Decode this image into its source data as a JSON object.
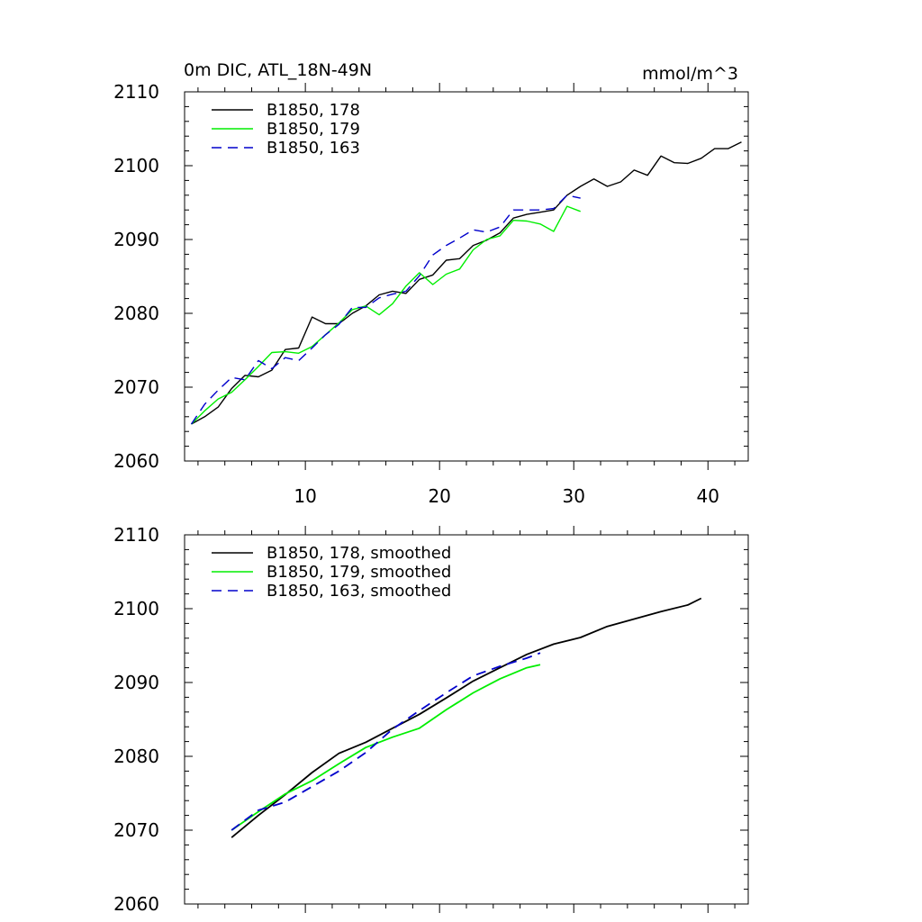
{
  "chart_data": [
    {
      "type": "line",
      "title": "0m DIC, ATL_18N-49N",
      "units": "mmol/m^3",
      "xlim": [
        1,
        43
      ],
      "ylim": [
        2060,
        2110
      ],
      "x_ticks": [
        10,
        20,
        30,
        40
      ],
      "x_tick_labels": [
        "10",
        "20",
        "30",
        "40"
      ],
      "y_ticks": [
        2060,
        2070,
        2080,
        2090,
        2100,
        2110
      ],
      "y_tick_labels": [
        "2060",
        "2070",
        "2080",
        "2090",
        "2100",
        "2110"
      ],
      "grid": false,
      "legend_position": "top-left",
      "series": [
        {
          "name": "B1850, 178",
          "color": "#000000",
          "dash": "solid",
          "x": [
            1.5,
            2.5,
            3.5,
            4.5,
            5.5,
            6.5,
            7.5,
            8.5,
            9.5,
            10.5,
            11.5,
            12.5,
            13.5,
            14.5,
            15.5,
            16.5,
            17.5,
            18.5,
            19.5,
            20.5,
            21.5,
            22.5,
            23.5,
            24.5,
            25.5,
            26.5,
            27.5,
            28.5,
            29.5,
            30.5,
            31.5,
            32.5,
            33.5,
            34.5,
            35.5,
            36.5,
            37.5,
            38.5,
            39.5,
            40.5,
            41.5,
            42.5
          ],
          "y": [
            2065.0,
            2066.0,
            2067.3,
            2069.8,
            2071.6,
            2071.4,
            2072.3,
            2075.1,
            2075.3,
            2079.5,
            2078.6,
            2078.6,
            2080.0,
            2081.0,
            2082.5,
            2083.0,
            2082.7,
            2084.6,
            2085.2,
            2087.2,
            2087.4,
            2089.2,
            2089.9,
            2090.9,
            2092.9,
            2093.4,
            2093.7,
            2094.0,
            2096.0,
            2097.2,
            2098.2,
            2097.2,
            2097.8,
            2099.4,
            2098.7,
            2101.3,
            2100.4,
            2100.3,
            2101.0,
            2102.3,
            2102.3,
            2103.2
          ]
        },
        {
          "name": "B1850, 179",
          "color": "#00ee00",
          "dash": "solid",
          "x": [
            1.5,
            2.5,
            3.5,
            4.5,
            5.5,
            6.5,
            7.5,
            8.5,
            9.5,
            10.5,
            11.5,
            12.5,
            13.5,
            14.5,
            15.5,
            16.5,
            17.5,
            18.5,
            19.5,
            20.5,
            21.5,
            22.5,
            23.5,
            24.5,
            25.5,
            26.5,
            27.5,
            28.5,
            29.5,
            30.5
          ],
          "y": [
            2065.0,
            2066.8,
            2068.4,
            2069.3,
            2071.0,
            2072.8,
            2074.7,
            2074.8,
            2074.6,
            2075.5,
            2077.1,
            2078.7,
            2080.5,
            2081.0,
            2079.8,
            2081.3,
            2083.7,
            2085.5,
            2083.9,
            2085.3,
            2086.0,
            2088.6,
            2090.0,
            2090.5,
            2092.6,
            2092.5,
            2092.1,
            2091.1,
            2094.5,
            2093.8
          ]
        },
        {
          "name": "B1850, 163",
          "color": "#0000cc",
          "dash": "dashed",
          "x": [
            1.5,
            2.5,
            3.5,
            4.5,
            5.5,
            6.5,
            7.5,
            8.5,
            9.5,
            10.5,
            11.5,
            12.5,
            13.5,
            14.5,
            15.5,
            16.5,
            17.5,
            18.5,
            19.5,
            20.5,
            21.5,
            22.5,
            23.5,
            24.5,
            25.5,
            26.5,
            27.5,
            28.5,
            29.5,
            30.5
          ],
          "y": [
            2065.0,
            2067.7,
            2069.6,
            2071.3,
            2071.0,
            2073.6,
            2072.5,
            2074.0,
            2073.6,
            2075.3,
            2077.1,
            2078.5,
            2080.8,
            2080.8,
            2082.1,
            2082.6,
            2083.0,
            2085.1,
            2087.9,
            2089.2,
            2090.2,
            2091.3,
            2091.0,
            2091.7,
            2094.0,
            2094.0,
            2094.0,
            2094.2,
            2096.0,
            2095.6
          ]
        }
      ]
    },
    {
      "type": "line",
      "xlim": [
        1,
        43
      ],
      "ylim": [
        2060,
        2110
      ],
      "x_ticks": [
        10,
        20,
        30,
        40
      ],
      "y_ticks": [
        2060,
        2070,
        2080,
        2090,
        2100,
        2110
      ],
      "y_tick_labels": [
        "2060",
        "2070",
        "2080",
        "2090",
        "2100",
        "2110"
      ],
      "grid": false,
      "legend_position": "top-left",
      "series": [
        {
          "name": "B1850, 178, smoothed",
          "color": "#000000",
          "dash": "solid",
          "x": [
            4.5,
            6.5,
            8.5,
            10.5,
            12.5,
            14.5,
            16.5,
            18.5,
            20.5,
            22.5,
            24.5,
            26.5,
            28.5,
            30.5,
            32.5,
            34.5,
            36.5,
            38.5,
            39.5
          ],
          "y": [
            2069.0,
            2072.0,
            2074.8,
            2077.8,
            2080.4,
            2081.9,
            2083.8,
            2085.7,
            2087.9,
            2090.2,
            2092.0,
            2093.8,
            2095.2,
            2096.1,
            2097.6,
            2098.6,
            2099.6,
            2100.5,
            2101.4
          ]
        },
        {
          "name": "B1850, 179, smoothed",
          "color": "#00ee00",
          "dash": "solid",
          "x": [
            4.5,
            6.5,
            8.5,
            10.5,
            12.5,
            14.5,
            16.5,
            18.5,
            20.5,
            22.5,
            24.5,
            26.5,
            27.5
          ],
          "y": [
            2070.0,
            2072.5,
            2074.9,
            2076.7,
            2079.0,
            2081.2,
            2082.6,
            2083.8,
            2086.3,
            2088.6,
            2090.5,
            2092.0,
            2092.4
          ]
        },
        {
          "name": "B1850, 163, smoothed",
          "color": "#0000cc",
          "dash": "dashed",
          "x": [
            4.5,
            6.5,
            8.5,
            10.5,
            12.5,
            14.5,
            16.5,
            18.5,
            20.5,
            22.5,
            24.5,
            26.5,
            27.5
          ],
          "y": [
            2070.0,
            2072.7,
            2073.8,
            2075.9,
            2078.0,
            2080.5,
            2083.7,
            2086.2,
            2088.6,
            2090.9,
            2092.2,
            2093.3,
            2094.0
          ]
        }
      ]
    }
  ]
}
